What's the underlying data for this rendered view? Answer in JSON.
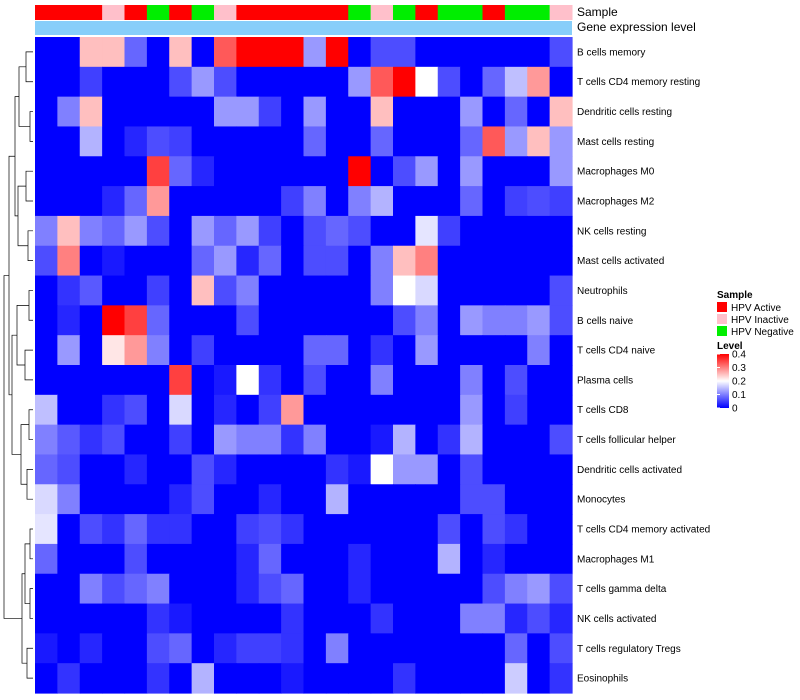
{
  "chart_data": {
    "type": "heatmap",
    "title": "",
    "annotation_labels": {
      "sample": "Sample",
      "gene_expression": "Gene expression level"
    },
    "sample_groups": [
      "A",
      "A",
      "A",
      "I",
      "A",
      "N",
      "A",
      "N",
      "I",
      "A",
      "A",
      "A",
      "A",
      "A",
      "N",
      "I",
      "N",
      "A",
      "N",
      "N",
      "A",
      "N",
      "N",
      "I"
    ],
    "group_colors": {
      "A": "#ff0000",
      "I": "#ffc0cb",
      "N": "#00ee00"
    },
    "gene_expression_color": "#87cefa",
    "rows": [
      "B cells memory",
      "T cells CD4 memory resting",
      "Dendritic cells resting",
      "Mast cells resting",
      "Macrophages M0",
      "Macrophages M2",
      "NK cells resting",
      "Mast cells activated",
      "Neutrophils",
      "B cells naive",
      "T cells CD4 naive",
      "Plasma cells",
      "T cells CD8",
      "T cells follicular helper",
      "Dendritic cells activated",
      "Monocytes",
      "T cells CD4 memory activated",
      "Macrophages M1",
      "T cells gamma delta",
      "NK cells activated",
      "T cells regulatory  Tregs",
      "Eosinophils"
    ],
    "values": [
      [
        0,
        0,
        0.25,
        0.25,
        0.08,
        0,
        0.25,
        0,
        0.33,
        0.4,
        0.4,
        0.4,
        0.12,
        0.4,
        0,
        0.06,
        0.06,
        0,
        0,
        0,
        0,
        0,
        0,
        0.06
      ],
      [
        0,
        0,
        0.05,
        0,
        0,
        0,
        0.06,
        0.12,
        0.06,
        0,
        0,
        0,
        0,
        0,
        0.12,
        0.33,
        0.4,
        0.2,
        0.06,
        0,
        0.08,
        0.15,
        0.28,
        0
      ],
      [
        0,
        0.1,
        0.25,
        0,
        0,
        0,
        0,
        0,
        0.12,
        0.12,
        0.05,
        0,
        0.12,
        0,
        0,
        0.25,
        0,
        0,
        0,
        0.12,
        0,
        0.08,
        0,
        0.25
      ],
      [
        0,
        0,
        0.14,
        0,
        0.03,
        0.06,
        0.05,
        0,
        0,
        0,
        0,
        0,
        0.08,
        0,
        0,
        0.08,
        0,
        0,
        0,
        0.08,
        0.33,
        0.12,
        0.25,
        0.12
      ],
      [
        0,
        0,
        0,
        0,
        0,
        0.35,
        0.08,
        0.03,
        0,
        0,
        0,
        0,
        0,
        0,
        0.4,
        0,
        0.06,
        0.12,
        0,
        0.12,
        0,
        0,
        0,
        0.12
      ],
      [
        0,
        0,
        0,
        0.03,
        0.08,
        0.28,
        0,
        0,
        0,
        0,
        0,
        0.05,
        0.1,
        0,
        0.1,
        0.14,
        0,
        0,
        0,
        0.08,
        0,
        0.05,
        0.06,
        0.05
      ],
      [
        0.1,
        0.25,
        0.1,
        0.08,
        0.12,
        0.06,
        0,
        0.12,
        0.08,
        0.12,
        0.05,
        0,
        0.06,
        0.08,
        0.06,
        0,
        0,
        0.18,
        0.05,
        0,
        0,
        0,
        0,
        0
      ],
      [
        0.06,
        0.3,
        0,
        0.02,
        0,
        0,
        0,
        0.08,
        0.12,
        0.03,
        0.08,
        0,
        0.06,
        0.06,
        0,
        0.1,
        0.25,
        0.3,
        0,
        0,
        0,
        0,
        0,
        0
      ],
      [
        0,
        0.04,
        0.07,
        0,
        0,
        0.05,
        0,
        0.25,
        0.06,
        0.1,
        0,
        0,
        0,
        0,
        0,
        0.1,
        0.2,
        0.17,
        0,
        0,
        0,
        0,
        0,
        0.06
      ],
      [
        0,
        0.03,
        0,
        0.4,
        0.35,
        0.08,
        0,
        0,
        0,
        0.06,
        0,
        0,
        0,
        0,
        0,
        0,
        0.06,
        0.1,
        0,
        0.12,
        0.1,
        0.1,
        0.12,
        0.06
      ],
      [
        0,
        0.12,
        0,
        0.22,
        0.28,
        0.1,
        0,
        0.05,
        0,
        0,
        0,
        0,
        0.08,
        0.08,
        0,
        0.04,
        0,
        0.12,
        0,
        0,
        0,
        0,
        0.1,
        0
      ],
      [
        0,
        0,
        0,
        0,
        0,
        0,
        0.35,
        0,
        0.02,
        0.2,
        0.04,
        0,
        0.06,
        0,
        0,
        0.1,
        0,
        0,
        0,
        0.1,
        0,
        0.06,
        0,
        0
      ],
      [
        0.15,
        0,
        0,
        0.04,
        0.06,
        0,
        0.17,
        0,
        0.03,
        0,
        0.05,
        0.28,
        0,
        0,
        0,
        0,
        0,
        0,
        0,
        0.12,
        0,
        0.05,
        0,
        0
      ],
      [
        0.1,
        0.07,
        0.04,
        0.06,
        0,
        0,
        0.05,
        0,
        0.12,
        0.1,
        0.1,
        0.04,
        0.1,
        0,
        0,
        0.02,
        0.14,
        0,
        0.04,
        0.14,
        0,
        0,
        0,
        0.06
      ],
      [
        0.08,
        0.06,
        0,
        0,
        0.03,
        0,
        0,
        0.06,
        0.03,
        0,
        0,
        0,
        0,
        0.04,
        0.02,
        0.2,
        0.12,
        0.12,
        0,
        0.06,
        0,
        0,
        0,
        0
      ],
      [
        0.17,
        0.1,
        0,
        0,
        0,
        0,
        0.03,
        0.06,
        0,
        0,
        0.03,
        0,
        0,
        0.14,
        0,
        0,
        0,
        0,
        0,
        0.06,
        0.06,
        0,
        0,
        0
      ],
      [
        0.18,
        0,
        0.06,
        0.04,
        0.08,
        0.04,
        0.04,
        0,
        0,
        0.05,
        0.06,
        0.04,
        0,
        0,
        0,
        0,
        0,
        0,
        0.06,
        0,
        0.06,
        0.04,
        0,
        0
      ],
      [
        0.08,
        0,
        0,
        0,
        0.06,
        0,
        0,
        0,
        0,
        0.03,
        0.08,
        0,
        0,
        0,
        0.03,
        0,
        0,
        0,
        0.14,
        0,
        0.03,
        0,
        0,
        0
      ],
      [
        0,
        0,
        0.1,
        0.06,
        0.08,
        0.1,
        0,
        0,
        0,
        0.03,
        0.06,
        0.08,
        0,
        0,
        0.03,
        0,
        0,
        0,
        0,
        0,
        0.06,
        0.1,
        0.12,
        0.06
      ],
      [
        0,
        0,
        0,
        0,
        0,
        0.04,
        0.02,
        0,
        0,
        0,
        0,
        0.04,
        0,
        0,
        0,
        0.04,
        0,
        0,
        0,
        0.1,
        0.1,
        0.03,
        0.06,
        0.03
      ],
      [
        0.02,
        0,
        0.03,
        0,
        0,
        0.06,
        0.08,
        0,
        0.03,
        0.05,
        0.05,
        0.04,
        0,
        0.1,
        0,
        0,
        0,
        0,
        0,
        0,
        0,
        0.08,
        0,
        0.06
      ],
      [
        0,
        0.04,
        0,
        0,
        0,
        0.04,
        0,
        0.14,
        0,
        0,
        0,
        0.02,
        0,
        0,
        0,
        0,
        0.04,
        0,
        0,
        0,
        0,
        0.16,
        0,
        0.04
      ]
    ],
    "color_scale": {
      "min": 0,
      "max": 0.4,
      "low_color": "#0000ff",
      "mid_color": "#ffffff",
      "mid_value": 0.2,
      "high_color": "#ff0000"
    },
    "legend": {
      "sample_title": "Sample",
      "sample_items": [
        {
          "label": "HPV Active",
          "color": "#ff0000"
        },
        {
          "label": "HPV Inactive",
          "color": "#ffc0cb"
        },
        {
          "label": "HPV Negative",
          "color": "#00ee00"
        }
      ],
      "level_title": "Level",
      "level_ticks": [
        "0.4",
        "0.3",
        "0.2",
        "0.1",
        "0"
      ],
      "level_tick_values": [
        0.4,
        0.3,
        0.2,
        0.1,
        0
      ],
      "placement": "right"
    },
    "row_dendrogram": "left",
    "grid": false
  }
}
